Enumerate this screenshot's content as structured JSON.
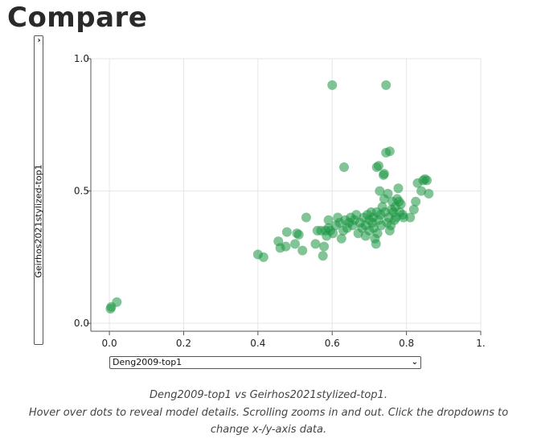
{
  "page": {
    "title": "Compare"
  },
  "controls": {
    "y_select_value": "Geirhos2021stylized-top1",
    "x_select_value": "Deng2009-top1",
    "chevron": "›"
  },
  "caption": {
    "line1": "Deng2009-top1 vs Geirhos2021stylized-top1.",
    "line2": "Hover over dots to reveal model details. Scrolling zooms in and out. Click the dropdowns to",
    "line3": "change x-/y-axis data."
  },
  "colors": {
    "dot": "#1a9641",
    "grid": "#e6e6e6",
    "axis": "#555555"
  },
  "chart_data": {
    "type": "scatter",
    "xlim": [
      -0.05,
      1.0
    ],
    "ylim": [
      -0.03,
      1.0
    ],
    "xticks": [
      0.0,
      0.2,
      0.4,
      0.6,
      0.8,
      1.0
    ],
    "xtick_labels": [
      "0.0",
      "0.2",
      "0.4",
      "0.6",
      "0.8",
      "1."
    ],
    "yticks": [
      0.0,
      0.5,
      1.0
    ],
    "ytick_labels": [
      "0.0",
      "0.5",
      "1.0"
    ],
    "grid": true,
    "xlabel": "Deng2009-top1",
    "ylabel": "Geirhos2021stylized-top1",
    "points": [
      [
        0.003,
        0.055
      ],
      [
        0.005,
        0.062
      ],
      [
        0.02,
        0.08
      ],
      [
        0.4,
        0.26
      ],
      [
        0.415,
        0.25
      ],
      [
        0.455,
        0.31
      ],
      [
        0.46,
        0.285
      ],
      [
        0.475,
        0.29
      ],
      [
        0.478,
        0.345
      ],
      [
        0.5,
        0.3
      ],
      [
        0.505,
        0.34
      ],
      [
        0.51,
        0.335
      ],
      [
        0.52,
        0.275
      ],
      [
        0.53,
        0.4
      ],
      [
        0.555,
        0.3
      ],
      [
        0.56,
        0.35
      ],
      [
        0.57,
        0.35
      ],
      [
        0.575,
        0.255
      ],
      [
        0.578,
        0.29
      ],
      [
        0.582,
        0.35
      ],
      [
        0.585,
        0.33
      ],
      [
        0.59,
        0.36
      ],
      [
        0.59,
        0.39
      ],
      [
        0.595,
        0.35
      ],
      [
        0.6,
        0.9
      ],
      [
        0.602,
        0.34
      ],
      [
        0.61,
        0.37
      ],
      [
        0.615,
        0.4
      ],
      [
        0.62,
        0.38
      ],
      [
        0.625,
        0.32
      ],
      [
        0.63,
        0.35
      ],
      [
        0.632,
        0.59
      ],
      [
        0.635,
        0.39
      ],
      [
        0.64,
        0.36
      ],
      [
        0.645,
        0.38
      ],
      [
        0.65,
        0.4
      ],
      [
        0.655,
        0.37
      ],
      [
        0.66,
        0.39
      ],
      [
        0.665,
        0.41
      ],
      [
        0.67,
        0.34
      ],
      [
        0.675,
        0.38
      ],
      [
        0.68,
        0.36
      ],
      [
        0.685,
        0.4
      ],
      [
        0.69,
        0.37
      ],
      [
        0.69,
        0.33
      ],
      [
        0.695,
        0.41
      ],
      [
        0.7,
        0.39
      ],
      [
        0.7,
        0.35
      ],
      [
        0.705,
        0.42
      ],
      [
        0.708,
        0.38
      ],
      [
        0.71,
        0.4
      ],
      [
        0.712,
        0.36
      ],
      [
        0.715,
        0.32
      ],
      [
        0.718,
        0.3
      ],
      [
        0.72,
        0.59
      ],
      [
        0.72,
        0.42
      ],
      [
        0.722,
        0.34
      ],
      [
        0.725,
        0.595
      ],
      [
        0.725,
        0.39
      ],
      [
        0.728,
        0.5
      ],
      [
        0.73,
        0.41
      ],
      [
        0.732,
        0.37
      ],
      [
        0.735,
        0.44
      ],
      [
        0.738,
        0.56
      ],
      [
        0.74,
        0.565
      ],
      [
        0.74,
        0.47
      ],
      [
        0.742,
        0.42
      ],
      [
        0.745,
        0.9
      ],
      [
        0.745,
        0.645
      ],
      [
        0.748,
        0.38
      ],
      [
        0.75,
        0.49
      ],
      [
        0.752,
        0.4
      ],
      [
        0.755,
        0.65
      ],
      [
        0.755,
        0.35
      ],
      [
        0.758,
        0.37
      ],
      [
        0.76,
        0.43
      ],
      [
        0.762,
        0.46
      ],
      [
        0.765,
        0.42
      ],
      [
        0.768,
        0.39
      ],
      [
        0.77,
        0.44
      ],
      [
        0.772,
        0.4
      ],
      [
        0.775,
        0.47
      ],
      [
        0.778,
        0.51
      ],
      [
        0.78,
        0.46
      ],
      [
        0.782,
        0.42
      ],
      [
        0.785,
        0.45
      ],
      [
        0.79,
        0.41
      ],
      [
        0.792,
        0.4
      ],
      [
        0.81,
        0.4
      ],
      [
        0.82,
        0.43
      ],
      [
        0.825,
        0.46
      ],
      [
        0.83,
        0.53
      ],
      [
        0.84,
        0.5
      ],
      [
        0.845,
        0.54
      ],
      [
        0.85,
        0.545
      ],
      [
        0.855,
        0.54
      ],
      [
        0.86,
        0.49
      ]
    ]
  }
}
